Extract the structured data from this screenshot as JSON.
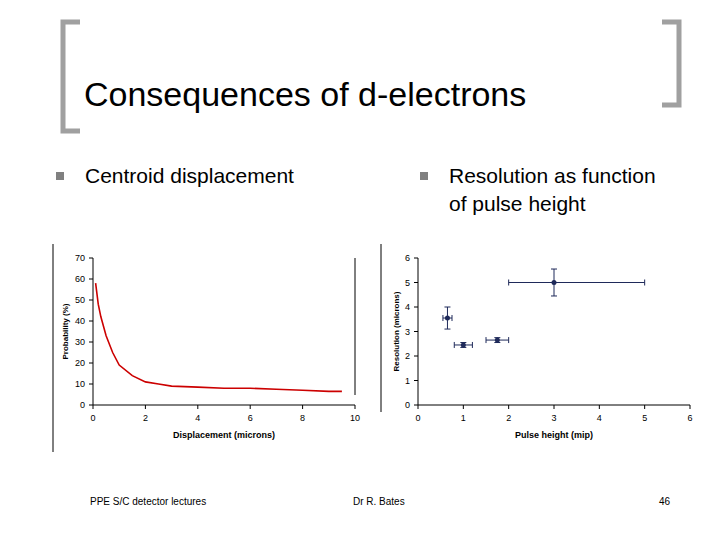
{
  "slide": {
    "title": "Consequences of d-electrons",
    "bullets": [
      "Centroid displacement",
      "Resolution as function of pulse height"
    ],
    "footer": {
      "left": "PPE S/C detector lectures",
      "center": "Dr R. Bates",
      "page": "46"
    }
  },
  "chart_data": [
    {
      "type": "line",
      "x_label": "Displacement (microns)",
      "y_label": "Probability (%)",
      "x": [
        0.1,
        0.2,
        0.3,
        0.5,
        0.75,
        1,
        1.5,
        2,
        2.5,
        3,
        4,
        5,
        6,
        7,
        8,
        9,
        9.5
      ],
      "values": [
        58,
        48,
        42,
        33,
        25,
        19,
        14,
        11,
        10,
        9,
        8.5,
        8,
        8,
        7.5,
        7,
        6.5,
        6.5
      ],
      "color": "#cc0000",
      "xlim": [
        0,
        10
      ],
      "xticks": [
        0,
        2,
        4,
        6,
        8,
        10
      ],
      "ylim": [
        0,
        70
      ],
      "yticks": [
        0,
        10,
        20,
        30,
        40,
        50,
        60,
        70
      ]
    },
    {
      "type": "scatter",
      "x_label": "Pulse height (mip)",
      "y_label": "Resolution (microns)",
      "x": [
        0.65,
        1.0,
        1.75,
        3.0
      ],
      "values": [
        3.55,
        2.45,
        2.65,
        5.0
      ],
      "y_error": [
        0.45,
        0.1,
        0.1,
        0.55
      ],
      "x_error_minus": [
        0.1,
        0.2,
        0.25,
        1.0
      ],
      "x_error_plus": [
        0.1,
        0.2,
        0.25,
        2.0
      ],
      "color": "#1f2a5a",
      "marker": "circle",
      "xlim": [
        0,
        6
      ],
      "xticks": [
        0,
        1,
        2,
        3,
        4,
        5,
        6
      ],
      "ylim": [
        0,
        6
      ],
      "yticks": [
        0,
        1,
        2,
        3,
        4,
        5,
        6
      ]
    }
  ]
}
